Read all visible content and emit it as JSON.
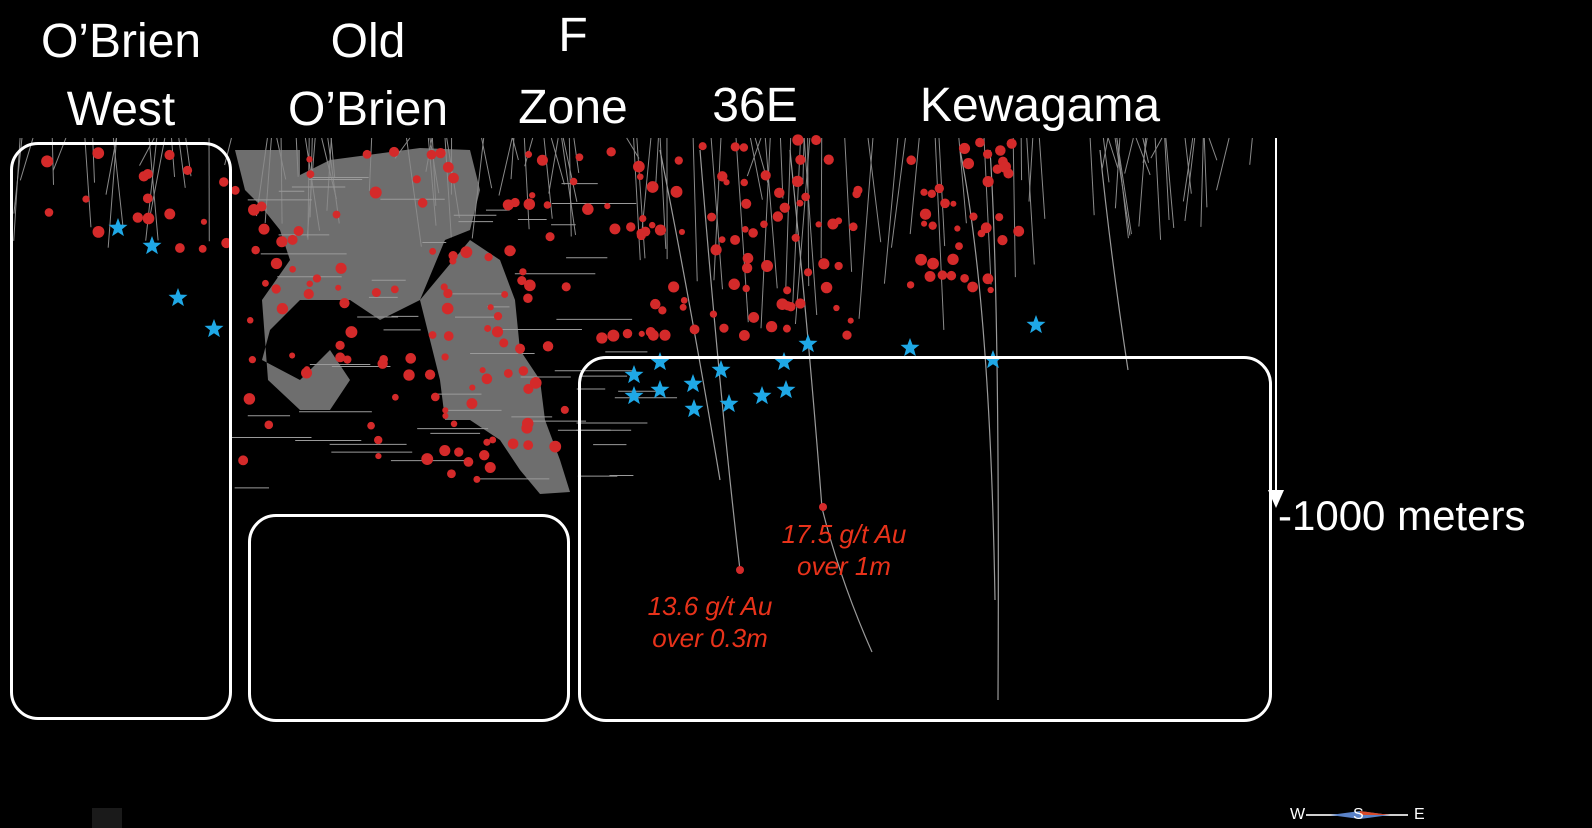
{
  "zones": [
    {
      "id": "obrien-west",
      "line1": "O’Brien",
      "line2": "West"
    },
    {
      "id": "old-obrien",
      "line1": "Old",
      "line2": "O’Brien"
    },
    {
      "id": "f-zone",
      "line1": "F",
      "line2": "Zone"
    },
    {
      "id": "36e",
      "line1": "36E"
    },
    {
      "id": "kewagama",
      "line1": "Kewagama"
    }
  ],
  "depth_label": "-1000 meters",
  "intercepts": [
    {
      "line1": "17.5 g/t Au",
      "line2": "over 1m"
    },
    {
      "line1": "13.6 g/t Au",
      "line2": "over 0.3m"
    }
  ],
  "compass": {
    "west": "W",
    "south": "S",
    "east": "E"
  },
  "colors": {
    "background": "#000000",
    "labels": "#ffffff",
    "outline_boxes": "#ffffff",
    "assay_text": "#e8321a",
    "drill_intercepts": "#d42a2a",
    "target_stars": "#1fa8e6",
    "workings": "#6e6e6e"
  }
}
